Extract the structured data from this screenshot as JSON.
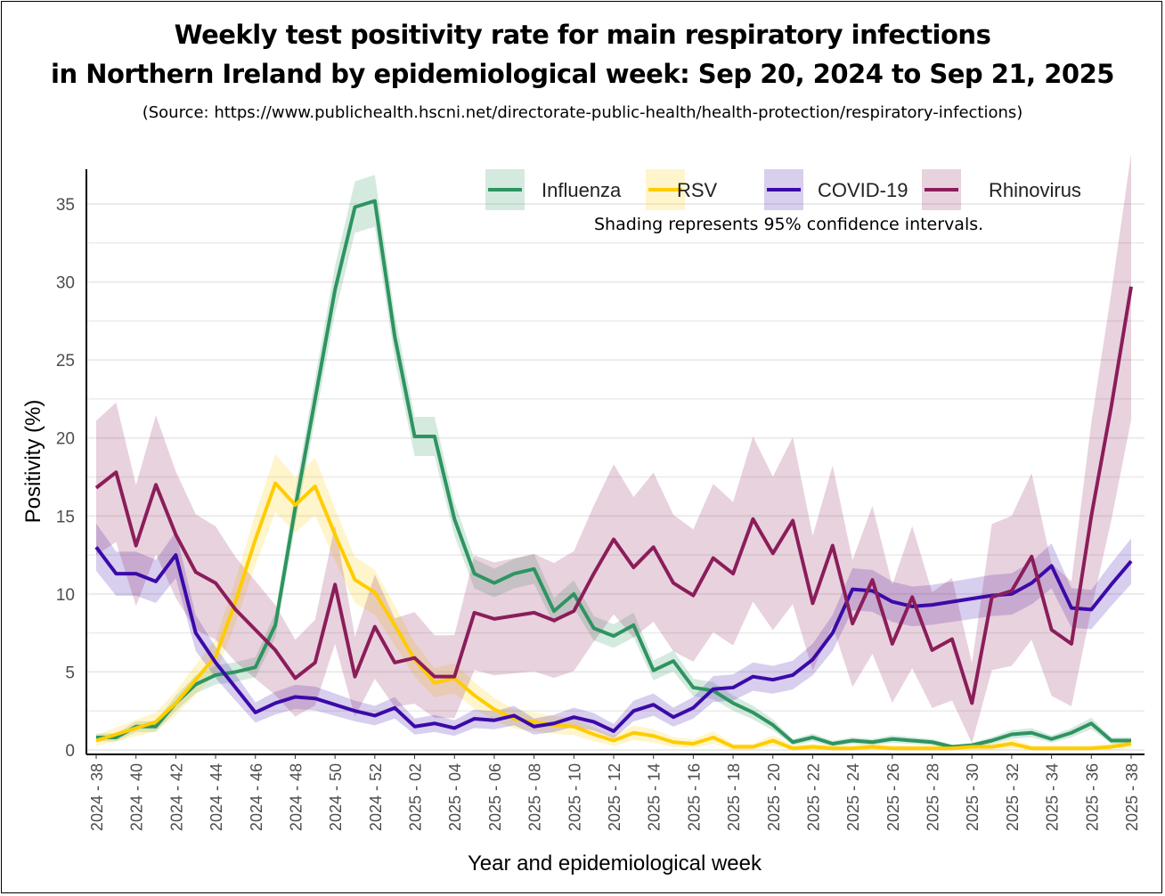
{
  "title_line1": "Weekly test positivity rate for main respiratory infections",
  "title_line2": "in Northern Ireland by epidemiological week: Sep 20, 2024 to Sep 21, 2025",
  "source": "(Source: https://www.publichealth.hscni.net/directorate-public-health/health-protection/respiratory-infections)",
  "chart_data": {
    "type": "line",
    "title": "Weekly test positivity rate for main respiratory infections in Northern Ireland by epidemiological week: Sep 20, 2024 to Sep 21, 2025",
    "xlabel": "Year and epidemiological week",
    "ylabel": "Positivity (%)",
    "ylim": [
      0,
      36.5
    ],
    "yticks": [
      "0",
      "5",
      "10",
      "15",
      "20",
      "25",
      "30",
      "35"
    ],
    "grid": true,
    "legend_placement": "top-right",
    "note": "Shading represents 95% confidence intervals.",
    "x": [
      "2024 - 38",
      "2024 - 39",
      "2024 - 40",
      "2024 - 41",
      "2024 - 42",
      "2024 - 43",
      "2024 - 44",
      "2024 - 45",
      "2024 - 46",
      "2024 - 47",
      "2024 - 48",
      "2024 - 49",
      "2024 - 50",
      "2024 - 51",
      "2024 - 52",
      "2025 - 01",
      "2025 - 02",
      "2025 - 03",
      "2025 - 04",
      "2025 - 05",
      "2025 - 06",
      "2025 - 07",
      "2025 - 08",
      "2025 - 09",
      "2025 - 10",
      "2025 - 11",
      "2025 - 12",
      "2025 - 13",
      "2025 - 14",
      "2025 - 15",
      "2025 - 16",
      "2025 - 17",
      "2025 - 18",
      "2025 - 19",
      "2025 - 20",
      "2025 - 21",
      "2025 - 22",
      "2025 - 23",
      "2025 - 24",
      "2025 - 25",
      "2025 - 26",
      "2025 - 27",
      "2025 - 28",
      "2025 - 29",
      "2025 - 30",
      "2025 - 31",
      "2025 - 32",
      "2025 - 33",
      "2025 - 34",
      "2025 - 35",
      "2025 - 36",
      "2025 - 37",
      "2025 - 38"
    ],
    "xtick_labels": [
      "2024 - 38",
      "2024 - 40",
      "2024 - 42",
      "2024 - 44",
      "2024 - 46",
      "2024 - 48",
      "2024 - 50",
      "2024 - 52",
      "2025 - 02",
      "2025 - 04",
      "2025 - 06",
      "2025 - 08",
      "2025 - 10",
      "2025 - 12",
      "2025 - 14",
      "2025 - 16",
      "2025 - 18",
      "2025 - 20",
      "2025 - 22",
      "2025 - 24",
      "2025 - 26",
      "2025 - 28",
      "2025 - 30",
      "2025 - 32",
      "2025 - 34",
      "2025 - 36",
      "2025 - 38"
    ],
    "series": [
      {
        "name": "Influenza",
        "color": "#2e9461",
        "ci_scale": 0.28,
        "values": [
          0.8,
          0.8,
          1.5,
          1.5,
          3.0,
          4.2,
          4.8,
          5.0,
          5.3,
          8.0,
          15.5,
          22.5,
          29.5,
          34.8,
          35.2,
          26.5,
          20.1,
          20.1,
          14.8,
          11.3,
          10.7,
          11.3,
          11.6,
          8.9,
          10.0,
          7.8,
          7.3,
          8.0,
          5.1,
          5.7,
          4.0,
          3.8,
          3.0,
          2.4,
          1.6,
          0.5,
          0.8,
          0.4,
          0.6,
          0.5,
          0.7,
          0.6,
          0.5,
          0.2,
          0.3,
          0.6,
          1.0,
          1.1,
          0.7,
          1.1,
          1.7,
          0.6,
          0.6
        ]
      },
      {
        "name": "RSV",
        "color": "#ffcc00",
        "ci_scale": 0.45,
        "values": [
          0.6,
          1.0,
          1.4,
          1.8,
          3.0,
          4.5,
          6.0,
          9.5,
          13.5,
          17.1,
          15.7,
          16.9,
          13.8,
          10.9,
          10.1,
          8.0,
          5.8,
          4.3,
          4.6,
          3.5,
          2.6,
          2.0,
          1.8,
          1.6,
          1.5,
          1.0,
          0.6,
          1.1,
          0.9,
          0.5,
          0.4,
          0.8,
          0.2,
          0.2,
          0.6,
          0.1,
          0.2,
          0.1,
          0.1,
          0.2,
          0.1,
          0.1,
          0.1,
          0.1,
          0.2,
          0.2,
          0.4,
          0.1,
          0.1,
          0.1,
          0.1,
          0.2,
          0.4
        ]
      },
      {
        "name": "COVID-19",
        "color": "#3b0aa8",
        "ci_scale": 0.42,
        "values": [
          13.0,
          11.3,
          11.3,
          10.8,
          12.5,
          7.5,
          5.6,
          4.0,
          2.4,
          3.0,
          3.4,
          3.3,
          2.9,
          2.5,
          2.2,
          2.7,
          1.5,
          1.7,
          1.4,
          2.0,
          1.9,
          2.2,
          1.5,
          1.7,
          2.1,
          1.8,
          1.2,
          2.5,
          2.9,
          2.1,
          2.7,
          3.9,
          4.0,
          4.7,
          4.5,
          4.8,
          5.8,
          7.5,
          10.3,
          10.2,
          9.5,
          9.2,
          9.3,
          9.5,
          9.7,
          9.9,
          10.0,
          10.7,
          11.8,
          9.1,
          9.0,
          10.6,
          12.1
        ]
      },
      {
        "name": "Rhinovirus",
        "color": "#8b1d5a",
        "ci_scale": 1.05,
        "values": [
          16.8,
          17.8,
          13.1,
          17.0,
          13.8,
          11.4,
          10.7,
          9.0,
          7.7,
          6.4,
          4.6,
          5.6,
          10.6,
          4.7,
          7.9,
          5.6,
          5.9,
          4.7,
          4.7,
          8.8,
          8.4,
          8.6,
          8.8,
          8.3,
          8.9,
          11.3,
          13.5,
          11.7,
          13.0,
          10.7,
          9.9,
          12.3,
          11.3,
          14.8,
          12.6,
          14.7,
          9.4,
          13.1,
          8.1,
          10.9,
          6.8,
          9.8,
          6.4,
          7.1,
          3.0,
          9.8,
          10.2,
          12.4,
          7.7,
          6.8,
          15.0,
          22.0,
          29.7
        ]
      }
    ]
  }
}
